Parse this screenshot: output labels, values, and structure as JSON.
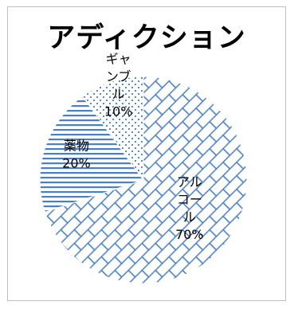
{
  "chart_data": {
    "type": "pie",
    "title": "アディクション",
    "slices": [
      {
        "name": "アルコール",
        "value": 70,
        "label_lines": [
          "アル",
          "コー",
          "ル",
          "70%"
        ],
        "pattern": "brick"
      },
      {
        "name": "薬物",
        "value": 20,
        "label_lines": [
          "薬物",
          "20%"
        ],
        "pattern": "hlines"
      },
      {
        "name": "ギャンブル",
        "value": 10,
        "label_lines": [
          "ギャ",
          "ンブ",
          "ル",
          "10%"
        ],
        "pattern": "dots"
      }
    ],
    "colors": {
      "pattern": "#4a7fc1",
      "background": "#ffffff"
    }
  }
}
